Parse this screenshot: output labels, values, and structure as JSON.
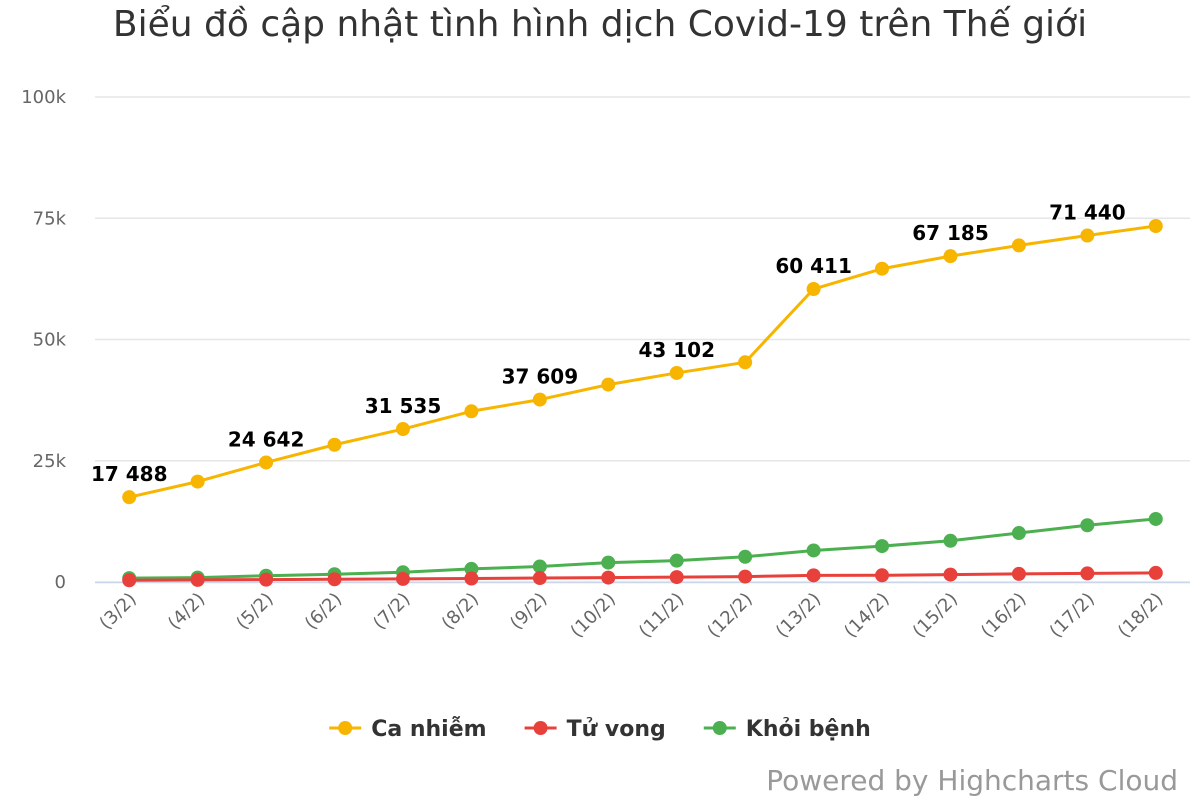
{
  "credits": "Powered by Highcharts Cloud",
  "chart_data": {
    "type": "line",
    "title": "Biểu đồ cập nhật tình hình dịch Covid-19 trên Thế giới",
    "categories": [
      "(3/2)",
      "(4/2)",
      "(5/2)",
      "(6/2)",
      "(7/2)",
      "(8/2)",
      "(9/2)",
      "(10/2)",
      "(11/2)",
      "(12/2)",
      "(13/2)",
      "(14/2)",
      "(15/2)",
      "(16/2)",
      "(17/2)",
      "(18/2)"
    ],
    "ylim": [
      0,
      100000
    ],
    "yticks": [
      0,
      25000,
      50000,
      75000,
      100000
    ],
    "ytick_labels": [
      "0",
      "25k",
      "50k",
      "75k",
      "100k"
    ],
    "grid": true,
    "legend_position": "bottom-center",
    "series": [
      {
        "name": "Ca nhiễm",
        "color": "#f7b500",
        "values": [
          17488,
          20700,
          24642,
          28300,
          31535,
          35200,
          37609,
          40700,
          43102,
          45300,
          60411,
          64600,
          67185,
          69400,
          71440,
          73400
        ],
        "labels": [
          "17 488",
          "",
          "24 642",
          "",
          "31 535",
          "",
          "37 609",
          "",
          "43 102",
          "",
          "60 411",
          "",
          "67 185",
          "",
          "71 440",
          ""
        ]
      },
      {
        "name": "Tử vong",
        "color": "#e8403b",
        "values": [
          362,
          426,
          492,
          565,
          638,
          724,
          813,
          910,
          1018,
          1115,
          1369,
          1383,
          1526,
          1669,
          1775,
          1873
        ]
      },
      {
        "name": "Khỏi bệnh",
        "color": "#4caf50",
        "values": [
          800,
          900,
          1300,
          1600,
          2000,
          2700,
          3200,
          4000,
          4400,
          5200,
          6500,
          7400,
          8500,
          10100,
          11700,
          13000
        ]
      }
    ]
  }
}
